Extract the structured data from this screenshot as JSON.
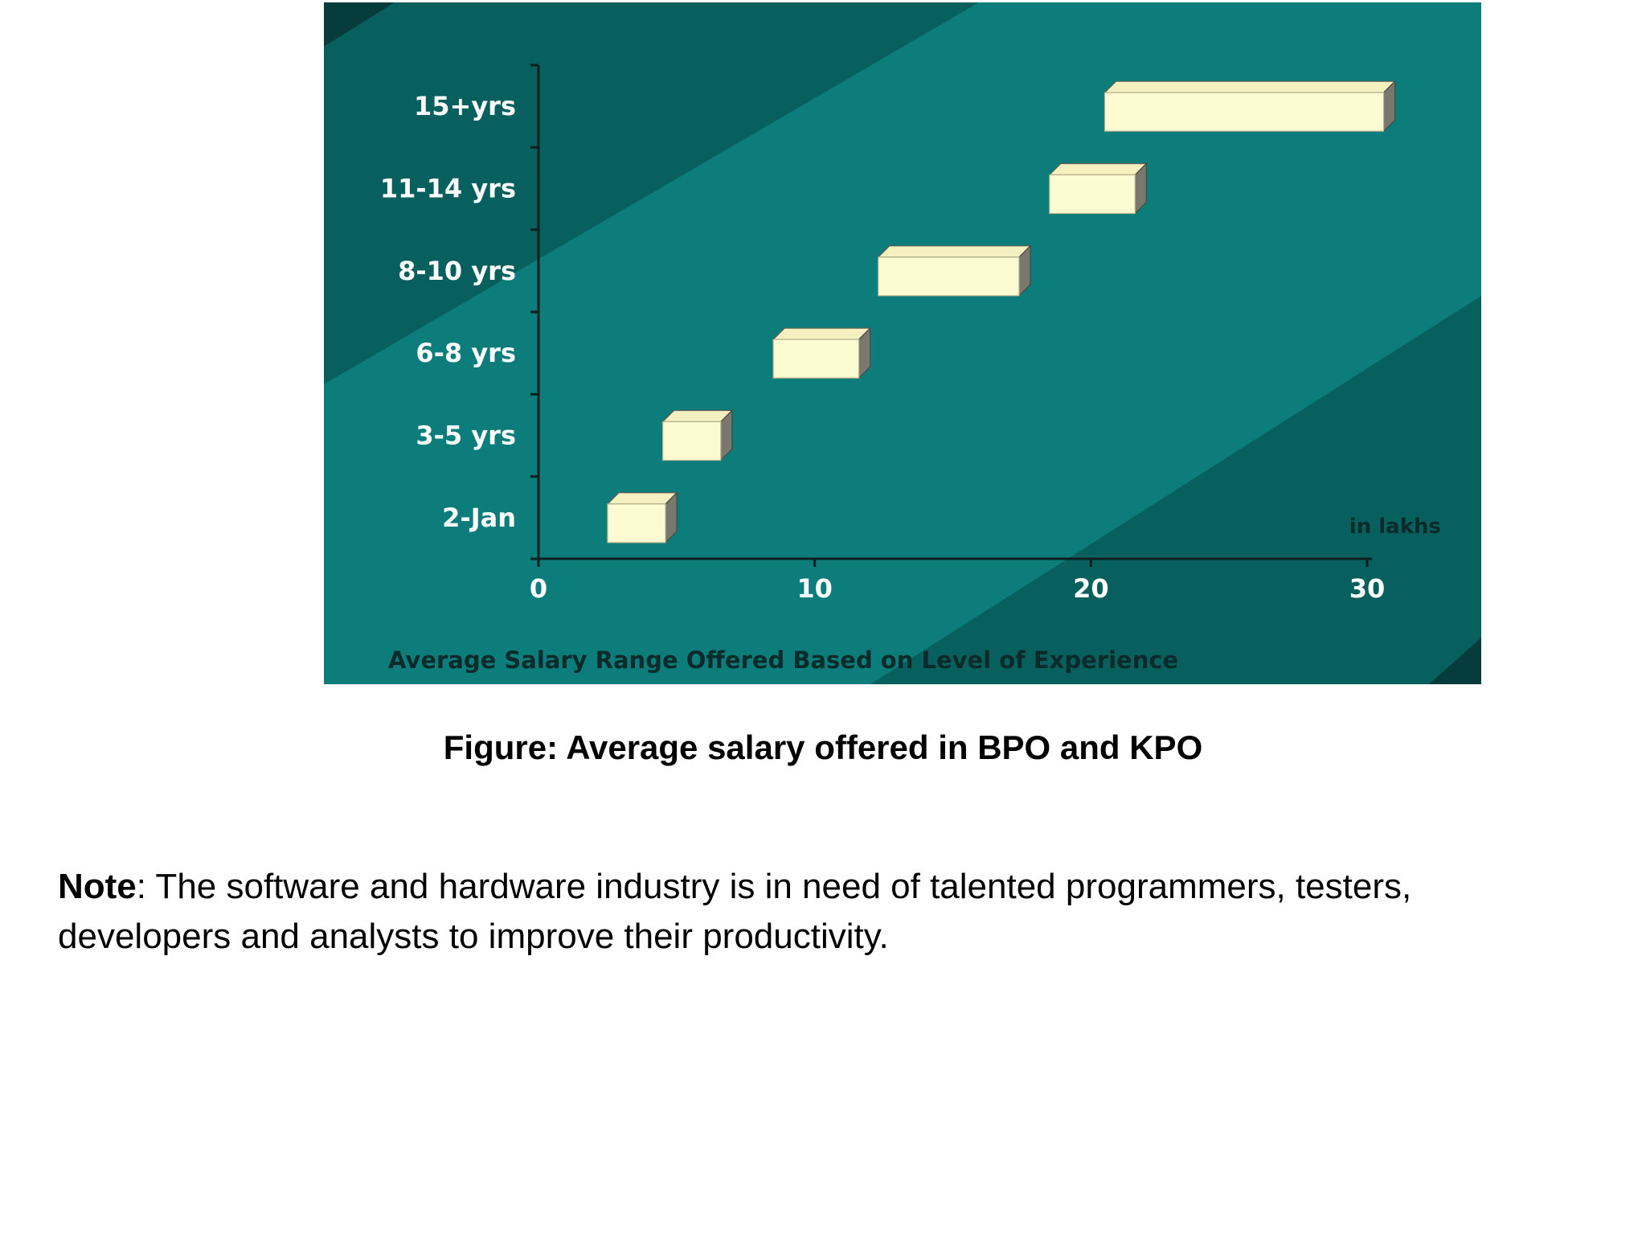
{
  "chart_data": {
    "type": "bar",
    "subtype": "floating-range-horizontal-3d",
    "title": "Average Salary Range Offered Based on Level of Experience",
    "unit_label": "in lakhs",
    "xlabel": "",
    "ylabel": "",
    "categories": [
      "2-Jan",
      "3-5 yrs",
      "6-8 yrs",
      "8-10 yrs",
      "11-14 yrs",
      "15+yrs"
    ],
    "ranges": [
      [
        2.5,
        4.6
      ],
      [
        4.5,
        6.6
      ],
      [
        8.5,
        11.6
      ],
      [
        12.3,
        17.4
      ],
      [
        18.5,
        21.6
      ],
      [
        20.5,
        30.6
      ]
    ],
    "xlim": [
      0,
      30
    ],
    "xticks": [
      0,
      10,
      20,
      30
    ],
    "grid": false,
    "colors": {
      "bar_front": "#fdfbd2",
      "bar_top": "#f4f0c0",
      "bar_side": "#7a786e",
      "background": "#0c7d7b",
      "background_dark": "#08605e",
      "corner_dark": "#063c3c"
    }
  },
  "caption": "Figure: Average salary offered in BPO and KPO",
  "note": {
    "label": "Note",
    "text": ": The software and hardware industry is in need of talented programmers, testers, developers and analysts to improve their productivity."
  }
}
